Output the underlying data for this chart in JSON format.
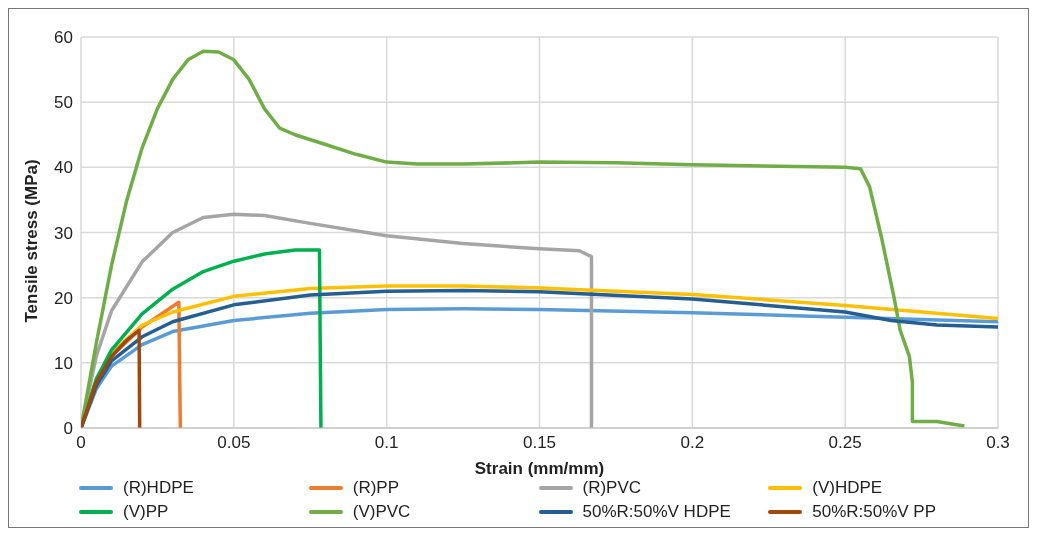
{
  "chart_data": {
    "type": "line",
    "xlabel": "Strain (mm/mm)",
    "ylabel": "Tensile stress (MPa)",
    "xlim": [
      0,
      0.3
    ],
    "xticks": [
      0,
      0.05,
      0.1,
      0.15,
      0.2,
      0.25,
      0.3
    ],
    "ylim": [
      0,
      60
    ],
    "yticks": [
      0,
      10,
      20,
      30,
      40,
      50,
      60
    ],
    "grid": true,
    "legend": "bottom",
    "marker": "none",
    "line_style": "solid",
    "series": [
      {
        "name": "(R)HDPE",
        "color": "#5b9bd5",
        "x": [
          0,
          0.005,
          0.01,
          0.02,
          0.03,
          0.05,
          0.075,
          0.1,
          0.125,
          0.15,
          0.2,
          0.25,
          0.3
        ],
        "values": [
          0,
          6,
          9.5,
          12.8,
          14.8,
          16.5,
          17.6,
          18.2,
          18.3,
          18.2,
          17.7,
          17,
          16.3
        ]
      },
      {
        "name": "(R)PP",
        "color": "#ed7d31",
        "x": [
          0,
          0.005,
          0.01,
          0.02,
          0.032,
          0.0325
        ],
        "values": [
          0,
          7,
          11,
          15.5,
          19.3,
          0
        ]
      },
      {
        "name": "(R)PVC",
        "color": "#a5a5a5",
        "x": [
          0,
          0.005,
          0.01,
          0.02,
          0.03,
          0.04,
          0.05,
          0.06,
          0.075,
          0.1,
          0.125,
          0.15,
          0.163,
          0.167,
          0.167
        ],
        "values": [
          0,
          11,
          18,
          25.5,
          30,
          32.3,
          32.8,
          32.6,
          31.4,
          29.5,
          28.3,
          27.5,
          27.2,
          26.3,
          0
        ]
      },
      {
        "name": "(V)HDPE",
        "color": "#ffc000",
        "x": [
          0,
          0.005,
          0.01,
          0.02,
          0.03,
          0.05,
          0.075,
          0.1,
          0.125,
          0.15,
          0.2,
          0.25,
          0.3
        ],
        "values": [
          0,
          7.5,
          11.5,
          15.8,
          17.8,
          20.2,
          21.4,
          21.8,
          21.8,
          21.5,
          20.5,
          18.8,
          16.8
        ]
      },
      {
        "name": "(V)PP",
        "color": "#00b050",
        "x": [
          0,
          0.005,
          0.01,
          0.02,
          0.03,
          0.04,
          0.05,
          0.06,
          0.07,
          0.078,
          0.0785
        ],
        "values": [
          0,
          7.5,
          12,
          17.5,
          21.3,
          24,
          25.6,
          26.7,
          27.3,
          27.3,
          0
        ]
      },
      {
        "name": "(V)PVC",
        "color": "#70ad47",
        "x": [
          0,
          0.005,
          0.01,
          0.015,
          0.02,
          0.025,
          0.03,
          0.035,
          0.04,
          0.045,
          0.05,
          0.055,
          0.06,
          0.065,
          0.07,
          0.08,
          0.09,
          0.1,
          0.11,
          0.125,
          0.15,
          0.175,
          0.2,
          0.25,
          0.255,
          0.258,
          0.262,
          0.266,
          0.268,
          0.271,
          0.272,
          0.272,
          0.28,
          0.289
        ],
        "values": [
          0,
          13,
          25,
          35,
          43,
          49,
          53.5,
          56.5,
          57.8,
          57.7,
          56.5,
          53.5,
          49,
          46,
          45,
          43.5,
          42,
          40.8,
          40.5,
          40.5,
          40.8,
          40.7,
          40.4,
          40,
          39.8,
          37,
          29,
          20,
          15,
          11,
          7,
          1,
          1,
          0.3
        ]
      },
      {
        "name": "50%R:50%V HDPE",
        "color": "#255e91",
        "x": [
          0,
          0.005,
          0.01,
          0.02,
          0.03,
          0.05,
          0.075,
          0.1,
          0.125,
          0.15,
          0.2,
          0.25,
          0.265,
          0.28,
          0.3
        ],
        "values": [
          0,
          6.5,
          10.3,
          14,
          16.3,
          18.9,
          20.4,
          21,
          21.1,
          20.9,
          19.8,
          17.8,
          16.5,
          15.8,
          15.5
        ]
      },
      {
        "name": "50%R:50%V PP",
        "color": "#9e480e",
        "x": [
          0,
          0.005,
          0.01,
          0.015,
          0.019,
          0.0192
        ],
        "values": [
          0,
          7,
          11,
          13.5,
          15,
          0
        ]
      }
    ]
  }
}
